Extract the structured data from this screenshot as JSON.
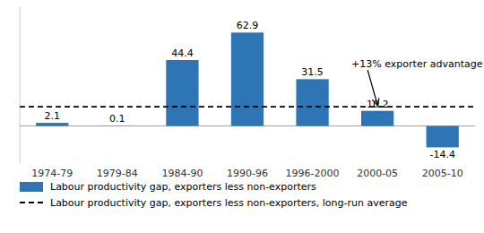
{
  "chart_data": {
    "type": "bar",
    "categories": [
      "1974-79",
      "1979-84",
      "1984-90",
      "1990-96",
      "1996-2000",
      "2000-05",
      "2005-10"
    ],
    "series": [
      {
        "name": "Labour productivity gap, exporters less non-exporters",
        "color": "#2E75B6",
        "values": [
          2.1,
          0.1,
          44.4,
          62.9,
          31.5,
          10.2,
          -14.4
        ]
      }
    ],
    "hlines": [
      {
        "name": "Labour productivity gap, exporters less non-exporters, long-run average",
        "value": 13.0,
        "color": "#000000",
        "line_style": "dashed"
      }
    ],
    "annotations": [
      {
        "text": "+13% exporter advantage",
        "x": "2000-05",
        "y": 13.0
      }
    ],
    "ylim": [
      -25,
      80
    ],
    "yticks": [],
    "data_labels": true,
    "tick_labels": "x",
    "legend": "bottom-left"
  }
}
